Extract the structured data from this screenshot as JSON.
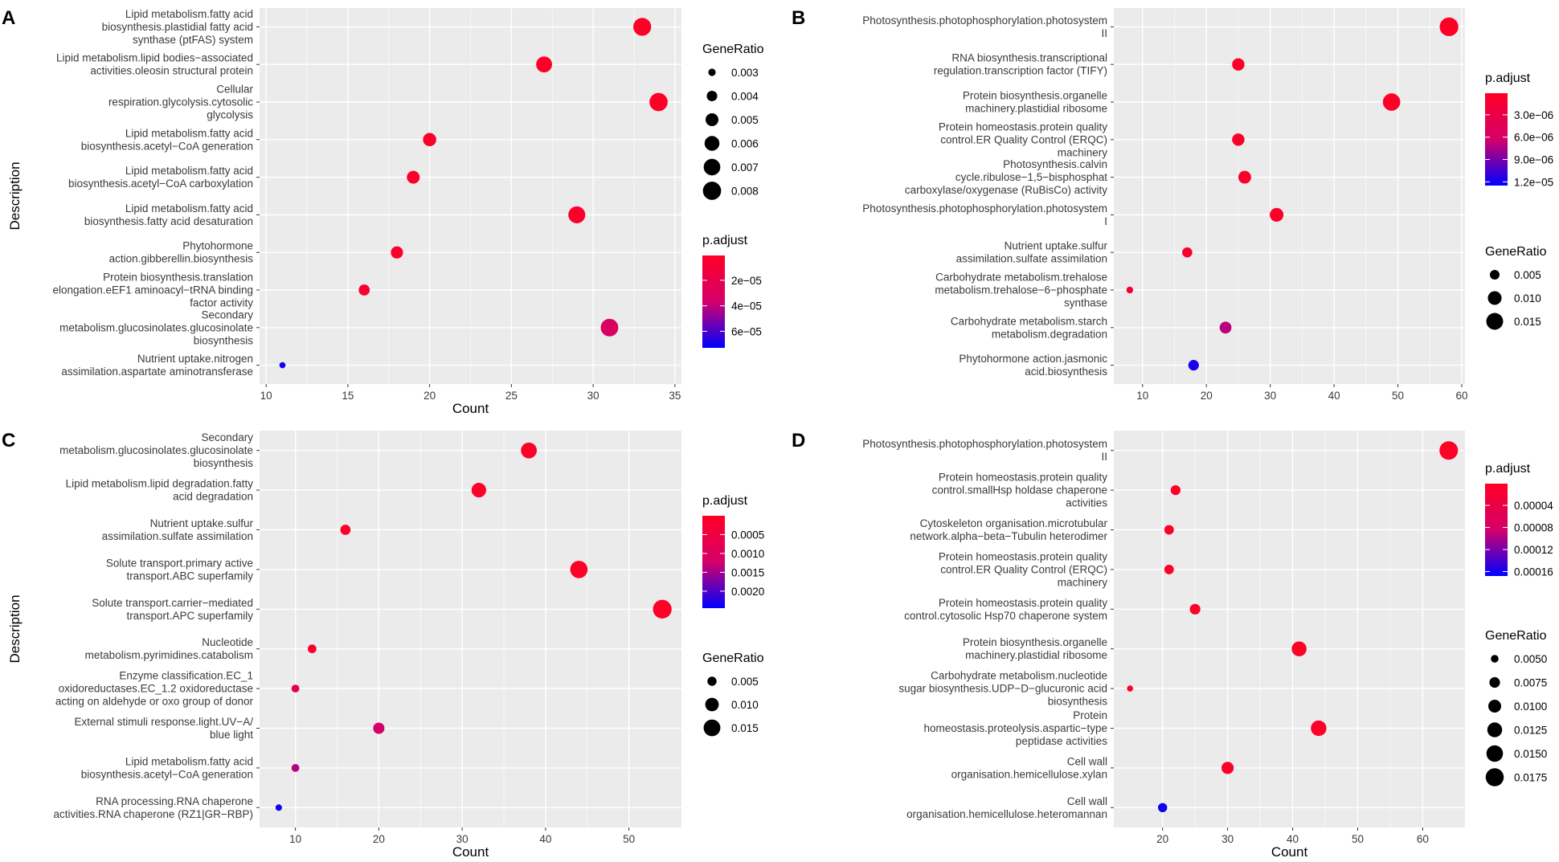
{
  "colors": {
    "low": "#FF0026",
    "high": "#0000FF",
    "panel": "#EBEBEB",
    "grid": "#FFFFFF"
  },
  "chart_data": [
    {
      "panel": "A",
      "type": "scatter",
      "xlabel": "Count",
      "ylabel": "Description",
      "xlim": [
        9.6,
        35.4
      ],
      "xticks": [
        10,
        15,
        20,
        25,
        30,
        35
      ],
      "size_title": "GeneRatio",
      "size_range": [
        0.0025,
        0.0085
      ],
      "size_breaks": [
        0.003,
        0.004,
        0.005,
        0.006,
        0.007,
        0.008
      ],
      "size_labels": [
        "0.003",
        "0.004",
        "0.005",
        "0.006",
        "0.007",
        "0.008"
      ],
      "color_title": "p.adjust",
      "color_range": [
        5e-07,
        7.3e-05
      ],
      "color_breaks": [
        2e-05,
        4e-05,
        6e-05
      ],
      "color_labels": [
        "2e−05",
        "4e−05",
        "6e−05"
      ],
      "legend_order": [
        "size",
        "color"
      ],
      "categories": [
        "Lipid metabolism.fatty acid\nbiosynthesis.plastidial fatty acid\nsynthase (ptFAS) system",
        "Lipid metabolism.lipid bodies−associated\nactivities.oleosin structural protein",
        "Cellular\nrespiration.glycolysis.cytosolic\nglycolysis",
        "Lipid metabolism.fatty acid\nbiosynthesis.acetyl−CoA generation",
        "Lipid metabolism.fatty acid\nbiosynthesis.acetyl−CoA carboxylation",
        "Lipid metabolism.fatty acid\nbiosynthesis.fatty acid desaturation",
        "Phytohormone\naction.gibberellin.biosynthesis",
        "Protein biosynthesis.translation\nelongation.eEF1 aminoacyl−tRNA binding\nfactor activity",
        "Secondary\nmetabolism.glucosinolates.glucosinolate\nbiosynthesis",
        "Nutrient uptake.nitrogen\nassimilation.aspartate aminotransferase"
      ],
      "x": [
        33,
        27,
        34,
        20,
        19,
        29,
        18,
        16,
        31,
        11
      ],
      "gene_ratio": [
        0.0078,
        0.0066,
        0.008,
        0.0052,
        0.005,
        0.0072,
        0.0047,
        0.0042,
        0.0076,
        0.0027
      ],
      "p_adjust": [
        1e-06,
        2e-06,
        1e-06,
        2e-06,
        3e-06,
        2e-06,
        4e-06,
        5e-06,
        3.2e-05,
        7e-05
      ]
    },
    {
      "panel": "B",
      "type": "scatter",
      "xlabel": "",
      "ylabel": "",
      "xlim": [
        5.5,
        60.5
      ],
      "xticks": [
        10,
        20,
        30,
        40,
        50,
        60
      ],
      "size_title": "GeneRatio",
      "size_range": [
        0.0015,
        0.019
      ],
      "size_breaks": [
        0.005,
        0.01,
        0.015
      ],
      "size_labels": [
        "0.005",
        "0.010",
        "0.015"
      ],
      "color_title": "p.adjust",
      "color_range": [
        1e-07,
        1.25e-05
      ],
      "color_breaks": [
        3e-06,
        6e-06,
        9e-06,
        1.2e-05
      ],
      "color_labels": [
        "3.0e−06",
        "6.0e−06",
        "9.0e−06",
        "1.2e−05"
      ],
      "legend_order": [
        "color",
        "size"
      ],
      "categories": [
        "Photosynthesis.photophosphorylation.photosystem\nII",
        "RNA biosynthesis.transcriptional\nregulation.transcription factor (TIFY)",
        "Protein biosynthesis.organelle\nmachinery.plastidial ribosome",
        "Protein homeostasis.protein quality\ncontrol.ER Quality Control (ERQC)\nmachinery",
        "Photosynthesis.calvin\ncycle.ribulose−1,5−bisphosphat\ncarboxylase/oxygenase (RuBisCo) activity",
        "Photosynthesis.photophosphorylation.photosystem\nI",
        "Nutrient uptake.sulfur\nassimilation.sulfate assimilation",
        "Carbohydrate metabolism.trehalose\nmetabolism.trehalose−6−phosphate\nsynthase",
        "Carbohydrate metabolism.starch\nmetabolism.degradation",
        "Phytohormone action.jasmonic\nacid.biosynthesis"
      ],
      "x": [
        58,
        25,
        49,
        25,
        26,
        31,
        17,
        8,
        23,
        18
      ],
      "gene_ratio": [
        0.0185,
        0.0082,
        0.016,
        0.0082,
        0.0087,
        0.01,
        0.0055,
        0.0025,
        0.0075,
        0.006
      ],
      "p_adjust": [
        2e-07,
        2e-07,
        2e-07,
        4e-07,
        5e-07,
        4e-07,
        8e-07,
        1.5e-06,
        7e-06,
        1.18e-05
      ]
    },
    {
      "panel": "C",
      "type": "scatter",
      "xlabel": "Count",
      "ylabel": "Description",
      "xlim": [
        5.7,
        56.3
      ],
      "xticks": [
        10,
        20,
        30,
        40,
        50
      ],
      "size_title": "GeneRatio",
      "size_range": [
        0.002,
        0.019
      ],
      "size_breaks": [
        0.005,
        0.01,
        0.015
      ],
      "size_labels": [
        "0.005",
        "0.010",
        "0.015"
      ],
      "color_title": "p.adjust",
      "color_range": [
        5e-07,
        0.00245
      ],
      "color_breaks": [
        0.0005,
        0.001,
        0.0015,
        0.002
      ],
      "color_labels": [
        "0.0005",
        "0.0010",
        "0.0015",
        "0.0020"
      ],
      "legend_order": [
        "color",
        "size"
      ],
      "categories": [
        "Secondary\nmetabolism.glucosinolates.glucosinolate\nbiosynthesis",
        "Lipid metabolism.lipid degradation.fatty\nacid degradation",
        "Nutrient uptake.sulfur\nassimilation.sulfate assimilation",
        "Solute transport.primary active\ntransport.ABC superfamily",
        "Solute transport.carrier−mediated\ntransport.APC superfamily",
        "Nucleotide\nmetabolism.pyrimidines.catabolism",
        "Enzyme classification.EC_1\noxidoreductases.EC_1.2 oxidoreductase\nacting on aldehyde or oxo group of donor",
        "External stimuli response.light.UV−A/\nblue light",
        "Lipid metabolism.fatty acid\nbiosynthesis.acetyl−CoA generation",
        "RNA processing.RNA chaperone\nactivities.RNA chaperone (RZ1|GR−RBP)"
      ],
      "x": [
        38,
        32,
        16,
        44,
        54,
        12,
        10,
        20,
        10,
        8
      ],
      "gene_ratio": [
        0.0135,
        0.0115,
        0.006,
        0.016,
        0.0185,
        0.0045,
        0.0038,
        0.0072,
        0.0038,
        0.0028
      ],
      "p_adjust": [
        1e-05,
        1e-05,
        2e-05,
        1e-05,
        1e-05,
        0.0002,
        0.0008,
        0.0012,
        0.0014,
        0.00235
      ]
    },
    {
      "panel": "D",
      "type": "scatter",
      "xlabel": "Count",
      "ylabel": "",
      "xlim": [
        12.5,
        66.5
      ],
      "xticks": [
        20,
        30,
        40,
        50,
        60
      ],
      "size_title": "GeneRatio",
      "size_range": [
        0.0035,
        0.019
      ],
      "size_breaks": [
        0.005,
        0.0075,
        0.01,
        0.0125,
        0.015,
        0.0175
      ],
      "size_labels": [
        "0.0050",
        "0.0075",
        "0.0100",
        "0.0125",
        "0.0150",
        "0.0175"
      ],
      "color_title": "p.adjust",
      "color_range": [
        5e-07,
        0.000168
      ],
      "color_breaks": [
        4e-05,
        8e-05,
        0.00012,
        0.00016
      ],
      "color_labels": [
        "0.00004",
        "0.00008",
        "0.00012",
        "0.00016"
      ],
      "legend_order": [
        "color",
        "size"
      ],
      "categories": [
        "Photosynthesis.photophosphorylation.photosystem\nII",
        "Protein homeostasis.protein quality\ncontrol.smallHsp holdase chaperone\nactivities",
        "Cytoskeleton organisation.microtubular\nnetwork.alpha−beta−Tubulin heterodimer",
        "Protein homeostasis.protein quality\ncontrol.ER Quality Control (ERQC)\nmachinery",
        "Protein homeostasis.protein quality\ncontrol.cytosolic Hsp70 chaperone system",
        "Protein biosynthesis.organelle\nmachinery.plastidial ribosome",
        "Carbohydrate metabolism.nucleotide\nsugar biosynthesis.UDP−D−glucuronic acid\nbiosynthesis",
        "Protein\nhomeostasis.proteolysis.aspartic−type\npeptidase activities",
        "Cell wall\norganisation.hemicellulose.xylan",
        "Cell wall\norganisation.hemicellulose.heteromannan"
      ],
      "x": [
        64,
        22,
        21,
        21,
        25,
        41,
        15,
        44,
        30,
        20
      ],
      "gene_ratio": [
        0.0182,
        0.0068,
        0.0065,
        0.0065,
        0.0075,
        0.0125,
        0.004,
        0.0135,
        0.0092,
        0.0062
      ],
      "p_adjust": [
        1e-06,
        1e-06,
        1e-06,
        1e-06,
        1e-06,
        1e-06,
        1e-06,
        1e-06,
        2e-06,
        0.00016
      ]
    }
  ]
}
